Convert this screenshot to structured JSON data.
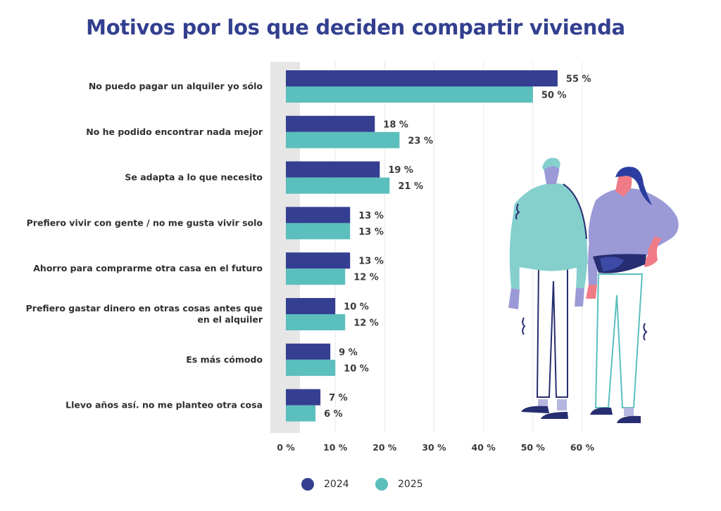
{
  "chart_data": {
    "type": "bar",
    "orientation": "horizontal",
    "title": "Motivos por los que deciden compartir vivienda",
    "categories": [
      [
        "No puedo pagar un alquiler yo sólo"
      ],
      [
        "No he podido encontrar nada mejor"
      ],
      [
        "Se adapta a lo que necesito"
      ],
      [
        "Prefiero vivir con gente / no me gusta vivir solo"
      ],
      [
        "Ahorro para comprarme otra casa en el futuro"
      ],
      [
        "Prefiero gastar dinero en otras cosas antes que",
        "en el alquiler"
      ],
      [
        "Es más cómodo"
      ],
      [
        "Llevo años así. no me planteo otra cosa"
      ]
    ],
    "series": [
      {
        "name": "2024",
        "color": "#343f91",
        "values": [
          55,
          18,
          19,
          13,
          13,
          10,
          9,
          7
        ],
        "labels": [
          "55 %",
          "18 %",
          "19 %",
          "13 %",
          "13 %",
          "10 %",
          "9 %",
          "7 %"
        ]
      },
      {
        "name": "2025",
        "color": "#5bbfbd",
        "values": [
          50,
          23,
          21,
          13,
          12,
          12,
          10,
          6
        ],
        "labels": [
          "50 %",
          "23 %",
          "21 %",
          "13 %",
          "12 %",
          "12 %",
          "10 %",
          "6 %"
        ]
      }
    ],
    "xlim": [
      0,
      60
    ],
    "xticks": [
      0,
      10,
      20,
      30,
      40,
      50,
      60
    ],
    "xtick_labels": [
      "0 %",
      "10 %",
      "20 %",
      "30 %",
      "40 %",
      "50 %",
      "60 %"
    ],
    "grid": true,
    "legend": "bottom-center"
  },
  "illustration": {
    "name": "two-people-illustration",
    "colors": {
      "teal": "#85cfcd",
      "lavender": "#9b9ad6",
      "navy": "#262d70",
      "skin": "#f07b86",
      "blue_hair": "#2b3da0"
    }
  }
}
